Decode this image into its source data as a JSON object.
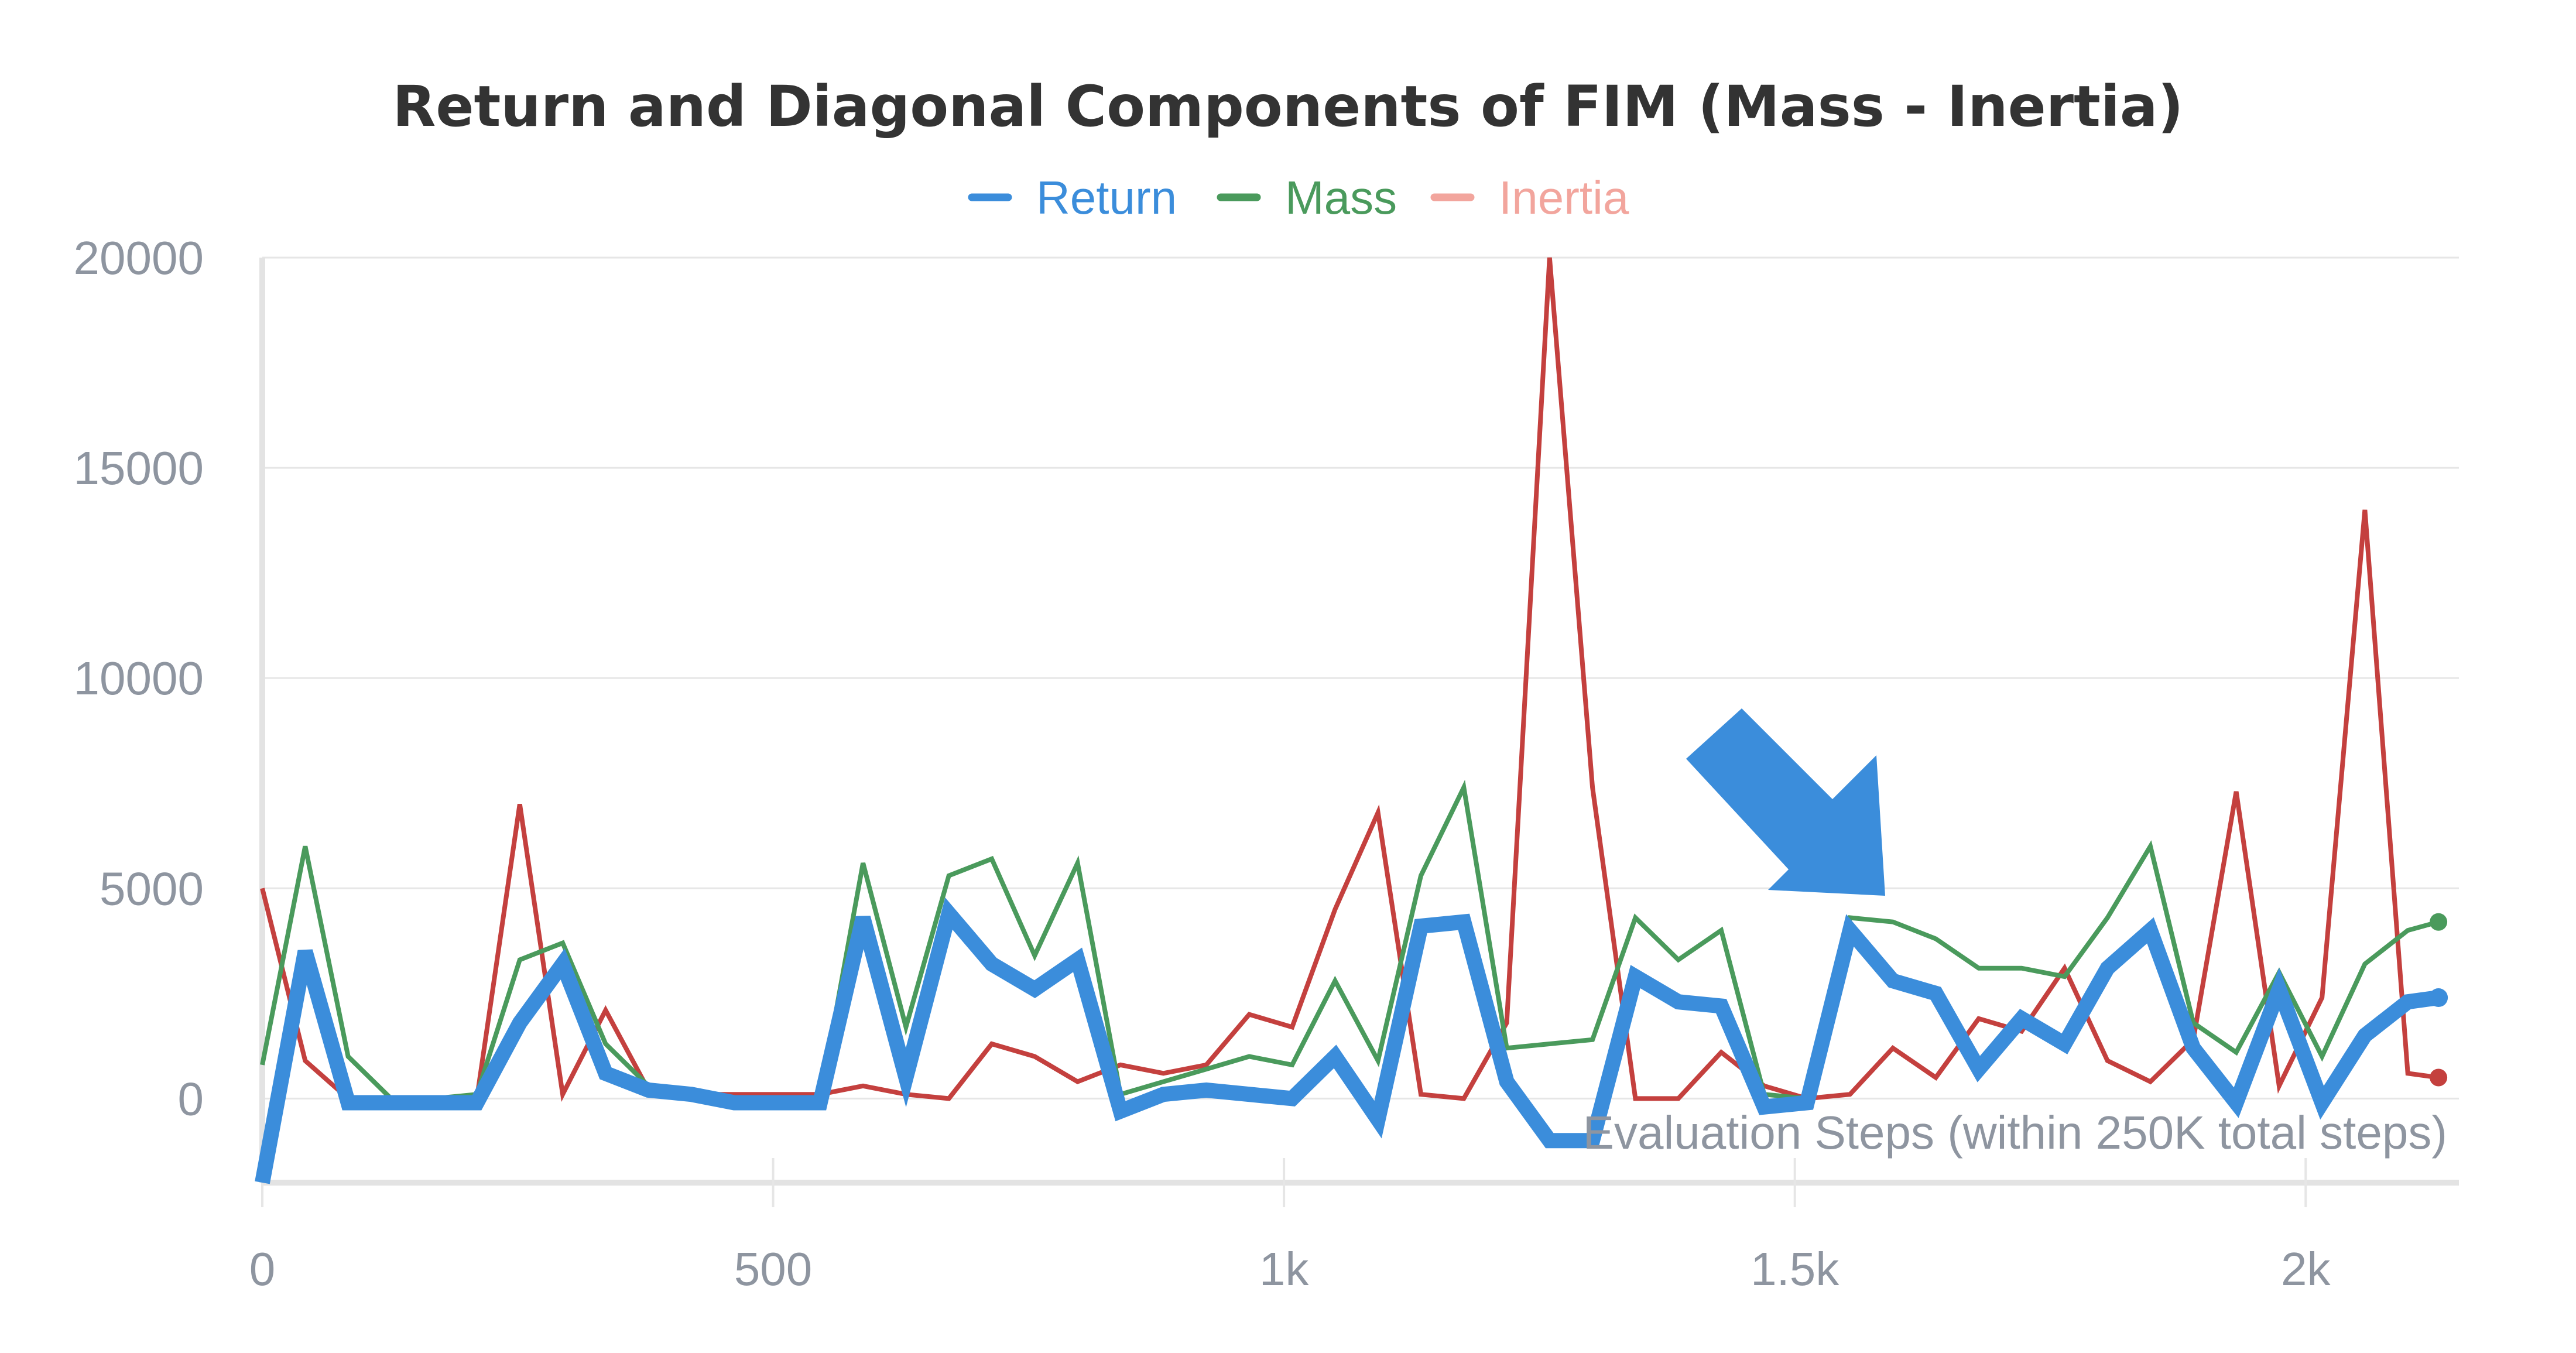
{
  "chart_data": {
    "type": "line",
    "title": "Return and Diagonal Components of FIM (Mass - Inertia)",
    "xlabel": "",
    "ylabel": "",
    "annotation": "Evaluation Steps (within 250K total steps)",
    "xlim": [
      0,
      2150
    ],
    "ylim": [
      -2000,
      20000
    ],
    "x_ticks": [
      0,
      500,
      1000,
      1500,
      2000
    ],
    "x_tick_labels": [
      "0",
      "500",
      "1k",
      "1.5k",
      "2k"
    ],
    "y_ticks": [
      0,
      5000,
      10000,
      15000,
      20000
    ],
    "y_tick_labels": [
      "0",
      "5000",
      "10000",
      "15000",
      "20000"
    ],
    "grid": true,
    "legend_position": "top-center",
    "series": [
      {
        "name": "Return",
        "color": "#3b8ddb",
        "x": [
          0,
          42,
          84,
          126,
          168,
          210,
          252,
          294,
          336,
          378,
          420,
          462,
          504,
          546,
          588,
          630,
          672,
          714,
          756,
          798,
          840,
          882,
          924,
          966,
          1008,
          1050,
          1092,
          1134,
          1176,
          1218,
          1260,
          1302,
          1344,
          1386,
          1428,
          1470,
          1512,
          1554,
          1596,
          1638,
          1680,
          1722,
          1764,
          1806,
          1848,
          1890,
          1932,
          1974,
          2016,
          2058,
          2100,
          2130
        ],
        "values": [
          -2000,
          3500,
          -100,
          -100,
          -100,
          -100,
          1800,
          3200,
          600,
          200,
          100,
          -100,
          -100,
          -100,
          4300,
          500,
          4400,
          3200,
          2600,
          3300,
          -300,
          100,
          200,
          100,
          0,
          1000,
          -500,
          4100,
          4200,
          400,
          -1000,
          -1000,
          2900,
          2300,
          2200,
          -200,
          -100,
          4000,
          2800,
          2500,
          700,
          1900,
          1300,
          3100,
          4000,
          1200,
          -100,
          2600,
          -100,
          1500,
          2300,
          2400
        ]
      },
      {
        "name": "Mass",
        "color": "#4a9a5c",
        "x": [
          0,
          42,
          84,
          126,
          168,
          210,
          252,
          294,
          336,
          378,
          420,
          462,
          504,
          546,
          588,
          630,
          672,
          714,
          756,
          798,
          840,
          882,
          924,
          966,
          1008,
          1050,
          1092,
          1134,
          1176,
          1218,
          1260,
          1302,
          1344,
          1386,
          1428,
          1470,
          1512,
          1554,
          1596,
          1638,
          1680,
          1722,
          1764,
          1806,
          1848,
          1890,
          1932,
          1974,
          2016,
          2058,
          2100,
          2130
        ],
        "values": [
          800,
          6000,
          1000,
          0,
          0,
          100,
          3300,
          3700,
          1300,
          300,
          200,
          0,
          0,
          0,
          5600,
          1700,
          5300,
          5700,
          3400,
          5600,
          100,
          400,
          700,
          1000,
          800,
          2800,
          900,
          5300,
          7400,
          1200,
          1300,
          1400,
          4300,
          3300,
          4000,
          100,
          0,
          4300,
          4200,
          3800,
          3100,
          3100,
          2900,
          4300,
          6000,
          1800,
          1100,
          3000,
          1000,
          3200,
          4000,
          4200
        ]
      },
      {
        "name": "Inertia",
        "color": "#c4403e",
        "legend_color": "#f2a59d",
        "x": [
          0,
          42,
          84,
          126,
          168,
          210,
          252,
          294,
          336,
          378,
          420,
          462,
          504,
          546,
          588,
          630,
          672,
          714,
          756,
          798,
          840,
          882,
          924,
          966,
          1008,
          1050,
          1092,
          1134,
          1176,
          1218,
          1260,
          1302,
          1344,
          1386,
          1428,
          1470,
          1512,
          1554,
          1596,
          1638,
          1680,
          1722,
          1764,
          1806,
          1848,
          1890,
          1932,
          1974,
          2016,
          2058,
          2100,
          2130
        ],
        "values": [
          5000,
          900,
          0,
          0,
          0,
          0,
          7000,
          100,
          2100,
          200,
          100,
          100,
          100,
          100,
          300,
          100,
          0,
          1300,
          1000,
          400,
          800,
          600,
          800,
          2000,
          1700,
          4500,
          6800,
          100,
          0,
          1800,
          20000,
          7400,
          0,
          0,
          1100,
          300,
          0,
          100,
          1200,
          500,
          1900,
          1600,
          3100,
          900,
          400,
          1400,
          7300,
          300,
          2400,
          14000,
          600,
          500
        ]
      }
    ]
  }
}
